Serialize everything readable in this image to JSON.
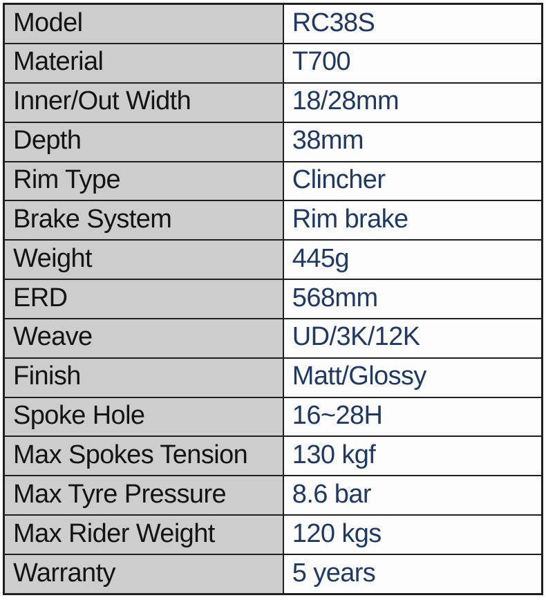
{
  "colors": {
    "label_bg": "#cdcdcd",
    "value_bg": "#fdfdfd",
    "border": "#1f1f1f",
    "label_text": "#141414",
    "value_text": "#1f3864",
    "page_bg": "#ffffff"
  },
  "table": {
    "rows": [
      {
        "label": "Model",
        "value": "RC38S"
      },
      {
        "label": "Material",
        "value": "T700"
      },
      {
        "label": "Inner/Out Width",
        "value": "18/28mm"
      },
      {
        "label": "Depth",
        "value": "38mm"
      },
      {
        "label": "Rim Type",
        "value": "Clincher"
      },
      {
        "label": "Brake System",
        "value": "Rim brake"
      },
      {
        "label": "Weight",
        "value": "445g"
      },
      {
        "label": "ERD",
        "value": "568mm"
      },
      {
        "label": "Weave",
        "value": "UD/3K/12K"
      },
      {
        "label": "Finish",
        "value": "Matt/Glossy"
      },
      {
        "label": "Spoke Hole",
        "value": "16~28H"
      },
      {
        "label": "Max Spokes Tension",
        "value": "130 kgf"
      },
      {
        "label": "Max Tyre Pressure",
        "value": "8.6 bar"
      },
      {
        "label": "Max Rider Weight",
        "value": "120 kgs"
      },
      {
        "label": "Warranty",
        "value": "5 years"
      }
    ]
  }
}
